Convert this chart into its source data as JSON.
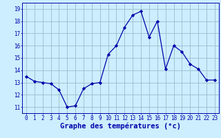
{
  "hours": [
    0,
    1,
    2,
    3,
    4,
    5,
    6,
    7,
    8,
    9,
    10,
    11,
    12,
    13,
    14,
    15,
    16,
    17,
    18,
    19,
    20,
    21,
    22,
    23
  ],
  "temps": [
    13.5,
    13.1,
    13.0,
    12.9,
    12.4,
    11.0,
    11.1,
    12.5,
    12.9,
    13.0,
    15.3,
    16.0,
    17.5,
    18.5,
    18.8,
    16.7,
    18.0,
    14.1,
    16.0,
    15.5,
    14.5,
    14.1,
    13.2,
    13.2
  ],
  "line_color": "#0000aa",
  "marker": "D",
  "marker_size": 2.2,
  "bg_color": "#cceeff",
  "grid_color": "#99bbcc",
  "xlabel": "Graphe des températures (°c)",
  "xlabel_color": "#0000aa",
  "xlabel_fontsize": 7.5,
  "tick_color": "#0000aa",
  "tick_fontsize": 5.5,
  "ylim": [
    10.5,
    19.5
  ],
  "yticks": [
    11,
    12,
    13,
    14,
    15,
    16,
    17,
    18,
    19
  ],
  "xticks": [
    0,
    1,
    2,
    3,
    4,
    5,
    6,
    7,
    8,
    9,
    10,
    11,
    12,
    13,
    14,
    15,
    16,
    17,
    18,
    19,
    20,
    21,
    22,
    23
  ],
  "xtick_labels": [
    "0",
    "1",
    "2",
    "3",
    "4",
    "5",
    "6",
    "7",
    "8",
    "9",
    "10",
    "11",
    "12",
    "13",
    "14",
    "15",
    "16",
    "17",
    "18",
    "19",
    "20",
    "21",
    "22",
    "23"
  ]
}
